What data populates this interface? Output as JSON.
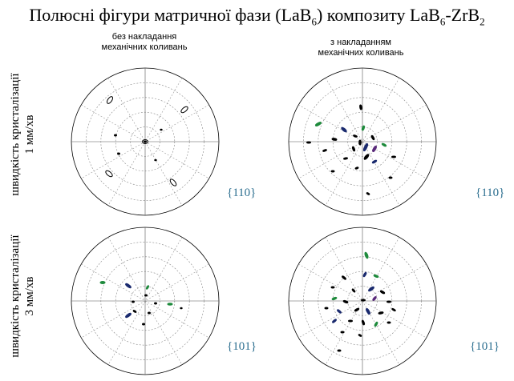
{
  "title": {
    "text_main": "Полюсні фігури матричної фази (LaB",
    "sub1": "6",
    "text_mid": ")  композиту LaB",
    "sub2": "6",
    "text_end": "-ZrB",
    "sub3": "2"
  },
  "columns": [
    {
      "line1": "без накладання",
      "line2": "механічних коливань"
    },
    {
      "line1": "з накладанням",
      "line2": "механічних коливань"
    }
  ],
  "rows": [
    {
      "line1": "швидкість  кристалізації",
      "line2": "1 мм/хв"
    },
    {
      "line1": "швидкість  кристалізації",
      "line2": "3 мм/хв"
    }
  ],
  "planes": [
    "{110}",
    "{110}",
    "{101}",
    "{101}"
  ],
  "colors": {
    "navy": "#1a2a6e",
    "green": "#1e8a3c",
    "black": "#000000",
    "purple": "#5a2a7a",
    "label": "#2b6e8f"
  }
}
